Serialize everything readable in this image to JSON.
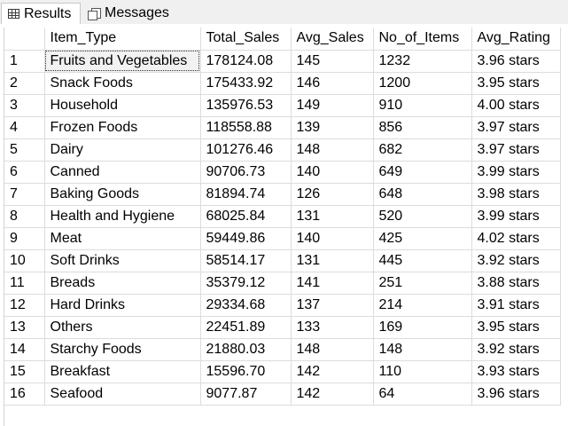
{
  "tabs": [
    {
      "label": "Results",
      "icon": "grid-icon",
      "active": true
    },
    {
      "label": "Messages",
      "icon": "messages-icon",
      "active": false
    }
  ],
  "grid": {
    "columns": [
      "",
      "Item_Type",
      "Total_Sales",
      "Avg_Sales",
      "No_of_Items",
      "Avg_Rating"
    ],
    "rows": [
      [
        "1",
        "Fruits and Vegetables",
        "178124.08",
        "145",
        "1232",
        "3.96 stars"
      ],
      [
        "2",
        "Snack Foods",
        "175433.92",
        "146",
        "1200",
        "3.95 stars"
      ],
      [
        "3",
        "Household",
        "135976.53",
        "149",
        "910",
        "4.00 stars"
      ],
      [
        "4",
        "Frozen Foods",
        "118558.88",
        "139",
        "856",
        "3.97 stars"
      ],
      [
        "5",
        "Dairy",
        "101276.46",
        "148",
        "682",
        "3.97 stars"
      ],
      [
        "6",
        "Canned",
        "90706.73",
        "140",
        "649",
        "3.99 stars"
      ],
      [
        "7",
        "Baking Goods",
        "81894.74",
        "126",
        "648",
        "3.98 stars"
      ],
      [
        "8",
        "Health and Hygiene",
        "68025.84",
        "131",
        "520",
        "3.99 stars"
      ],
      [
        "9",
        "Meat",
        "59449.86",
        "140",
        "425",
        "4.02 stars"
      ],
      [
        "10",
        "Soft Drinks",
        "58514.17",
        "131",
        "445",
        "3.92 stars"
      ],
      [
        "11",
        "Breads",
        "35379.12",
        "141",
        "251",
        "3.88 stars"
      ],
      [
        "12",
        "Hard Drinks",
        "29334.68",
        "137",
        "214",
        "3.91 stars"
      ],
      [
        "13",
        "Others",
        "22451.89",
        "133",
        "169",
        "3.95 stars"
      ],
      [
        "14",
        "Starchy Foods",
        "21880.03",
        "148",
        "148",
        "3.92 stars"
      ],
      [
        "15",
        "Breakfast",
        "15596.70",
        "142",
        "110",
        "3.93 stars"
      ],
      [
        "16",
        "Seafood",
        "9077.87",
        "142",
        "64",
        "3.96 stars"
      ]
    ]
  }
}
